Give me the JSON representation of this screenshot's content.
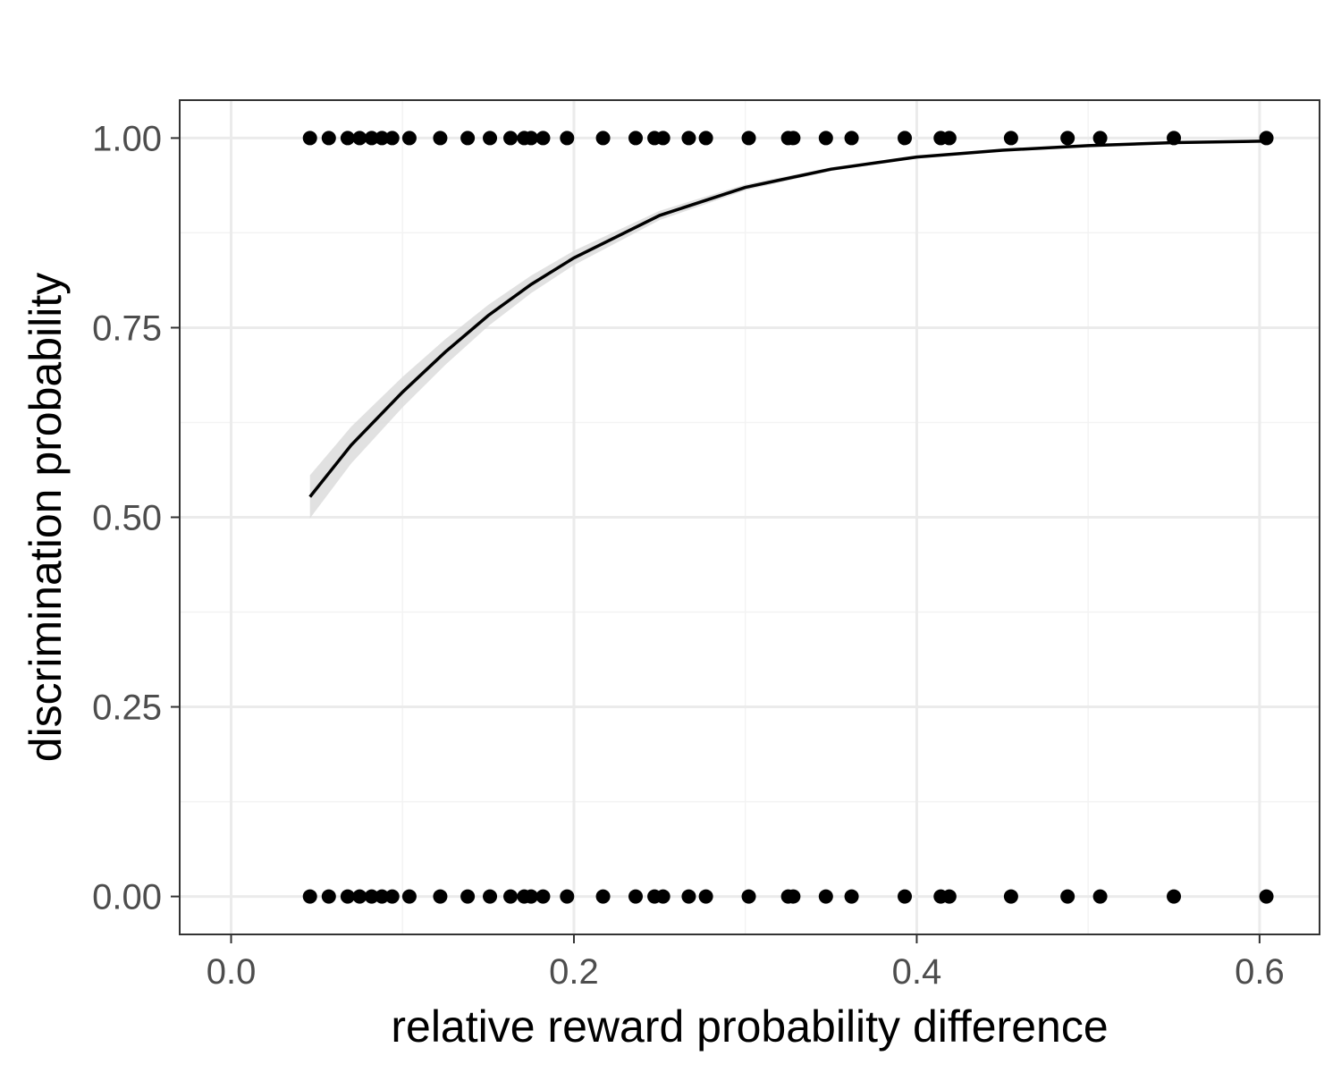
{
  "chart_data": {
    "type": "scatter",
    "title": "",
    "xlabel": "relative reward probability difference",
    "ylabel": "discrimination probability",
    "xlim": [
      -0.03,
      0.635
    ],
    "ylim": [
      -0.05,
      1.05
    ],
    "x_ticks": [
      0.0,
      0.2,
      0.4,
      0.6
    ],
    "x_tick_labels": [
      "0.0",
      "0.2",
      "0.4",
      "0.6"
    ],
    "y_ticks": [
      0.0,
      0.25,
      0.5,
      0.75,
      1.0
    ],
    "y_tick_labels": [
      "0.00",
      "0.25",
      "0.50",
      "0.75",
      "1.00"
    ],
    "grid": true,
    "legend": "none",
    "colors": {
      "points": "#000000",
      "fit_line": "#000000",
      "ribbon": "#d9d9d9",
      "panel_border": "#333333",
      "grid_major": "#ebebeb",
      "grid_minor": "#f3f3f3"
    },
    "points_x": [
      0.046,
      0.057,
      0.068,
      0.075,
      0.082,
      0.088,
      0.094,
      0.104,
      0.122,
      0.138,
      0.151,
      0.163,
      0.171,
      0.175,
      0.182,
      0.196,
      0.217,
      0.236,
      0.247,
      0.252,
      0.267,
      0.277,
      0.302,
      0.325,
      0.328,
      0.347,
      0.362,
      0.393,
      0.414,
      0.419,
      0.455,
      0.488,
      0.507,
      0.55,
      0.604
    ],
    "series": [
      {
        "y": 1,
        "x_ref": "points_x"
      },
      {
        "y": 0,
        "x_ref": "points_x"
      }
    ],
    "fit_curve": {
      "type": "logistic",
      "x": [
        0.046,
        0.07,
        0.1,
        0.125,
        0.15,
        0.175,
        0.2,
        0.25,
        0.3,
        0.35,
        0.4,
        0.45,
        0.5,
        0.55,
        0.604
      ],
      "y": [
        0.527,
        0.595,
        0.665,
        0.718,
        0.766,
        0.807,
        0.842,
        0.898,
        0.935,
        0.959,
        0.975,
        0.984,
        0.99,
        0.994,
        0.996
      ],
      "ribbon_halfwidth": 0.015
    }
  }
}
